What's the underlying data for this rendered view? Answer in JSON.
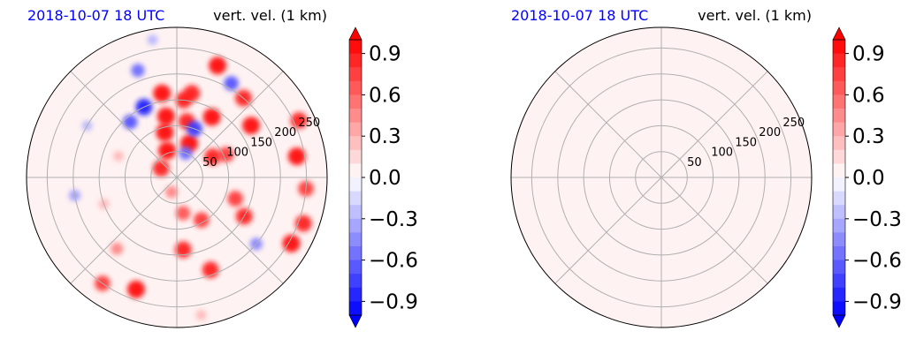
{
  "colors": {
    "positive": "#ff0000",
    "negative": "#0000ff",
    "neutral": "#ffffff",
    "date_title": "#0000ff",
    "grid": "#b0b0b0"
  },
  "chart_data": [
    {
      "type": "heatmap",
      "projection": "polar",
      "title_left": "2018-10-07 18 UTC",
      "title_right": "vert. vel. (1 km)",
      "radial_ticks": [
        "50",
        "100",
        "150",
        "200",
        "250"
      ],
      "radial_max": 290,
      "grid": true,
      "colorbar": {
        "ticks": [
          "0.9",
          "0.6",
          "0.3",
          "0.0",
          "−0.3",
          "−0.6",
          "−0.9"
        ],
        "vmin": -1.0,
        "vmax": 1.0,
        "extend": "both"
      },
      "field": [
        {
          "r": 35,
          "theta": 300,
          "value": 0.9
        },
        {
          "r": 55,
          "theta": 340,
          "value": 1.0
        },
        {
          "r": 70,
          "theta": 20,
          "value": 1.0
        },
        {
          "r": 90,
          "theta": 345,
          "value": 1.0
        },
        {
          "r": 110,
          "theta": 10,
          "value": 0.9
        },
        {
          "r": 120,
          "theta": 350,
          "value": 1.0
        },
        {
          "r": 135,
          "theta": 30,
          "value": 1.0
        },
        {
          "r": 150,
          "theta": 5,
          "value": 0.9
        },
        {
          "r": 165,
          "theta": 350,
          "value": 1.0
        },
        {
          "r": 150,
          "theta": 335,
          "value": -0.9
        },
        {
          "r": 100,
          "theta": 20,
          "value": -0.8
        },
        {
          "r": 140,
          "theta": 320,
          "value": -0.7
        },
        {
          "r": 220,
          "theta": 340,
          "value": -0.6
        },
        {
          "r": 80,
          "theta": 60,
          "value": 0.9
        },
        {
          "r": 105,
          "theta": 65,
          "value": 0.8
        },
        {
          "r": 120,
          "theta": 110,
          "value": 0.8
        },
        {
          "r": 150,
          "theta": 120,
          "value": 0.9
        },
        {
          "r": 95,
          "theta": 150,
          "value": 0.8
        },
        {
          "r": 70,
          "theta": 170,
          "value": 0.7
        },
        {
          "r": 140,
          "theta": 175,
          "value": 0.9
        },
        {
          "r": 190,
          "theta": 160,
          "value": 0.9
        },
        {
          "r": 230,
          "theta": 200,
          "value": 1.0
        },
        {
          "r": 255,
          "theta": 120,
          "value": 1.0
        },
        {
          "r": 260,
          "theta": 110,
          "value": 0.9
        },
        {
          "r": 250,
          "theta": 95,
          "value": 0.8
        },
        {
          "r": 235,
          "theta": 80,
          "value": 1.0
        },
        {
          "r": 260,
          "theta": 65,
          "value": 0.9
        },
        {
          "r": 175,
          "theta": 55,
          "value": 1.0
        },
        {
          "r": 200,
          "theta": 40,
          "value": 0.9
        },
        {
          "r": 210,
          "theta": 30,
          "value": -0.7
        },
        {
          "r": 230,
          "theta": 20,
          "value": 1.0
        },
        {
          "r": 165,
          "theta": 10,
          "value": 0.9
        },
        {
          "r": 180,
          "theta": 220,
          "value": 0.5
        },
        {
          "r": 200,
          "theta": 260,
          "value": -0.4
        },
        {
          "r": 150,
          "theta": 250,
          "value": 0.3
        },
        {
          "r": 120,
          "theta": 290,
          "value": 0.3
        },
        {
          "r": 200,
          "theta": 300,
          "value": -0.3
        },
        {
          "r": 50,
          "theta": 20,
          "value": -0.6
        },
        {
          "r": 30,
          "theta": 200,
          "value": 0.5
        },
        {
          "r": 270,
          "theta": 170,
          "value": 0.3
        },
        {
          "r": 270,
          "theta": 350,
          "value": -0.3
        },
        {
          "r": 200,
          "theta": 130,
          "value": -0.5
        },
        {
          "r": 250,
          "theta": 215,
          "value": 0.8
        }
      ]
    },
    {
      "type": "heatmap",
      "projection": "polar",
      "title_left": "2018-10-07 18 UTC",
      "title_right": "vert. vel. (1 km)",
      "radial_ticks": [
        "50",
        "100",
        "150",
        "200",
        "250"
      ],
      "radial_max": 290,
      "grid": true,
      "colorbar": {
        "ticks": [
          "0.9",
          "0.6",
          "0.3",
          "0.0",
          "−0.3",
          "−0.6",
          "−0.9"
        ],
        "vmin": -1.0,
        "vmax": 1.0,
        "extend": "both"
      },
      "uniform_value": 0.05
    }
  ]
}
